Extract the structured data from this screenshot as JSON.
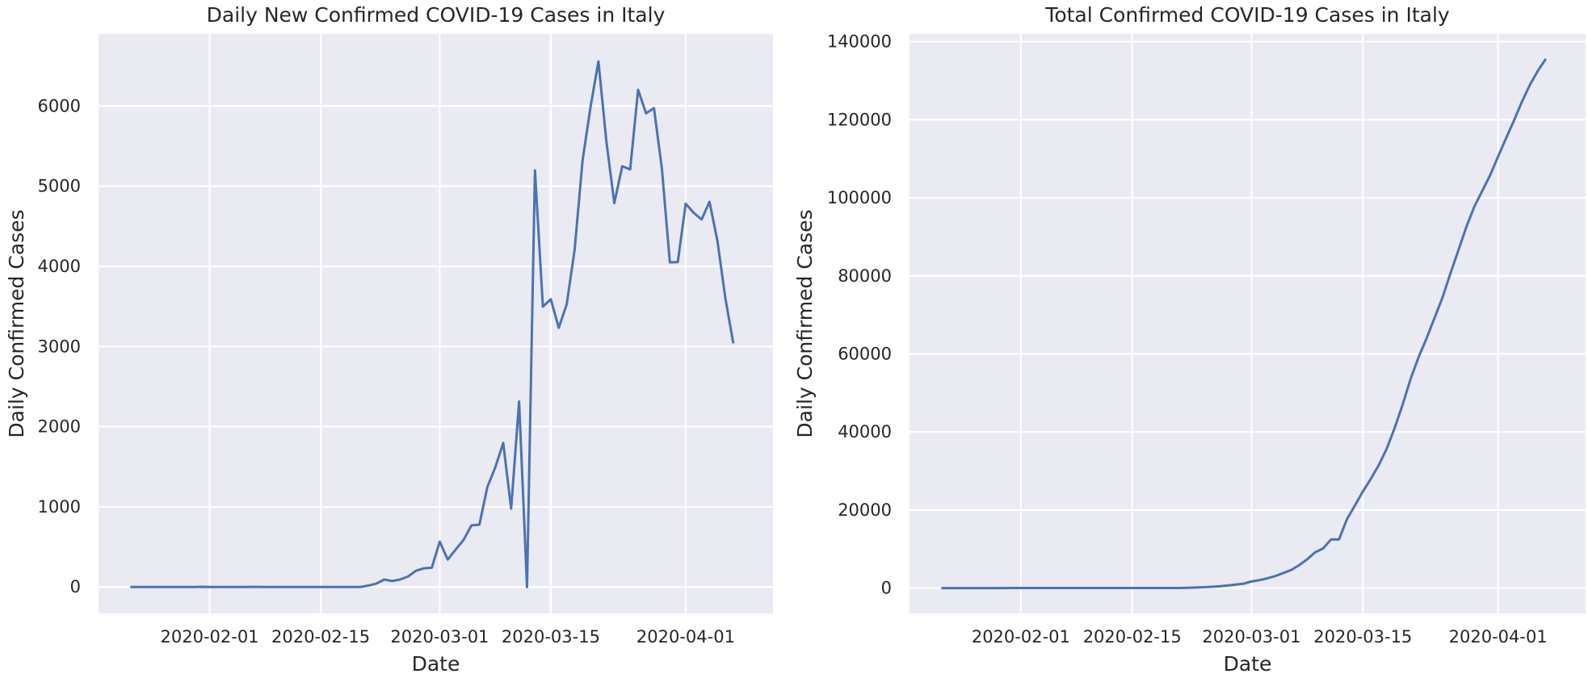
{
  "chart_data": [
    {
      "type": "line",
      "title": "Daily New Confirmed COVID-19 Cases in Italy",
      "xlabel": "Date",
      "ylabel": "Daily Confirmed Cases",
      "grid": true,
      "x_ticks": [
        "2020-02-01",
        "2020-02-15",
        "2020-03-01",
        "2020-03-15",
        "2020-04-01"
      ],
      "y_ticks": [
        0,
        1000,
        2000,
        3000,
        4000,
        5000,
        6000
      ],
      "xlim": [
        "2020-01-18",
        "2020-04-12"
      ],
      "ylim": [
        -330,
        6900
      ],
      "series": [
        {
          "color": "#4c72b0",
          "x": [
            "2020-01-22",
            "2020-01-23",
            "2020-01-24",
            "2020-01-25",
            "2020-01-26",
            "2020-01-27",
            "2020-01-28",
            "2020-01-29",
            "2020-01-30",
            "2020-01-31",
            "2020-02-01",
            "2020-02-02",
            "2020-02-03",
            "2020-02-04",
            "2020-02-05",
            "2020-02-06",
            "2020-02-07",
            "2020-02-08",
            "2020-02-09",
            "2020-02-10",
            "2020-02-11",
            "2020-02-12",
            "2020-02-13",
            "2020-02-14",
            "2020-02-15",
            "2020-02-16",
            "2020-02-17",
            "2020-02-18",
            "2020-02-19",
            "2020-02-20",
            "2020-02-21",
            "2020-02-22",
            "2020-02-23",
            "2020-02-24",
            "2020-02-25",
            "2020-02-26",
            "2020-02-27",
            "2020-02-28",
            "2020-02-29",
            "2020-03-01",
            "2020-03-02",
            "2020-03-03",
            "2020-03-04",
            "2020-03-05",
            "2020-03-06",
            "2020-03-07",
            "2020-03-08",
            "2020-03-09",
            "2020-03-10",
            "2020-03-11",
            "2020-03-12",
            "2020-03-13",
            "2020-03-14",
            "2020-03-15",
            "2020-03-16",
            "2020-03-17",
            "2020-03-18",
            "2020-03-19",
            "2020-03-20",
            "2020-03-21",
            "2020-03-22",
            "2020-03-23",
            "2020-03-24",
            "2020-03-25",
            "2020-03-26",
            "2020-03-27",
            "2020-03-28",
            "2020-03-29",
            "2020-03-30",
            "2020-03-31",
            "2020-04-01",
            "2020-04-02",
            "2020-04-03",
            "2020-04-04",
            "2020-04-05",
            "2020-04-06",
            "2020-04-07"
          ],
          "values": [
            0,
            0,
            0,
            0,
            0,
            0,
            0,
            0,
            0,
            2,
            0,
            0,
            0,
            0,
            0,
            1,
            1,
            0,
            0,
            0,
            0,
            0,
            0,
            0,
            0,
            0,
            0,
            0,
            0,
            0,
            17,
            42,
            93,
            74,
            93,
            131,
            202,
            233,
            240,
            566,
            342,
            466,
            587,
            769,
            778,
            1247,
            1492,
            1797,
            977,
            2313,
            0,
            5198,
            3497,
            3590,
            3233,
            3526,
            4207,
            5322,
            5986,
            6557,
            5560,
            4789,
            5249,
            5210,
            6203,
            5909,
            5974,
            5217,
            4050,
            4053,
            4782,
            4668,
            4585,
            4805,
            4316,
            3599,
            3039
          ]
        }
      ]
    },
    {
      "type": "line",
      "title": "Total Confirmed COVID-19 Cases in Italy",
      "xlabel": "Date",
      "ylabel": "Daily Confirmed Cases",
      "grid": true,
      "x_ticks": [
        "2020-02-01",
        "2020-02-15",
        "2020-03-01",
        "2020-03-15",
        "2020-04-01"
      ],
      "y_ticks": [
        0,
        20000,
        40000,
        60000,
        80000,
        100000,
        120000,
        140000
      ],
      "xlim": [
        "2020-01-18",
        "2020-04-12"
      ],
      "ylim": [
        -6500,
        142000
      ],
      "series": [
        {
          "color": "#4c72b0",
          "x": [
            "2020-01-22",
            "2020-01-23",
            "2020-01-24",
            "2020-01-25",
            "2020-01-26",
            "2020-01-27",
            "2020-01-28",
            "2020-01-29",
            "2020-01-30",
            "2020-01-31",
            "2020-02-01",
            "2020-02-02",
            "2020-02-03",
            "2020-02-04",
            "2020-02-05",
            "2020-02-06",
            "2020-02-07",
            "2020-02-08",
            "2020-02-09",
            "2020-02-10",
            "2020-02-11",
            "2020-02-12",
            "2020-02-13",
            "2020-02-14",
            "2020-02-15",
            "2020-02-16",
            "2020-02-17",
            "2020-02-18",
            "2020-02-19",
            "2020-02-20",
            "2020-02-21",
            "2020-02-22",
            "2020-02-23",
            "2020-02-24",
            "2020-02-25",
            "2020-02-26",
            "2020-02-27",
            "2020-02-28",
            "2020-02-29",
            "2020-03-01",
            "2020-03-02",
            "2020-03-03",
            "2020-03-04",
            "2020-03-05",
            "2020-03-06",
            "2020-03-07",
            "2020-03-08",
            "2020-03-09",
            "2020-03-10",
            "2020-03-11",
            "2020-03-12",
            "2020-03-13",
            "2020-03-14",
            "2020-03-15",
            "2020-03-16",
            "2020-03-17",
            "2020-03-18",
            "2020-03-19",
            "2020-03-20",
            "2020-03-21",
            "2020-03-22",
            "2020-03-23",
            "2020-03-24",
            "2020-03-25",
            "2020-03-26",
            "2020-03-27",
            "2020-03-28",
            "2020-03-29",
            "2020-03-30",
            "2020-03-31",
            "2020-04-01",
            "2020-04-02",
            "2020-04-03",
            "2020-04-04",
            "2020-04-05",
            "2020-04-06",
            "2020-04-07"
          ],
          "values": [
            0,
            0,
            0,
            0,
            0,
            0,
            0,
            0,
            0,
            2,
            2,
            2,
            2,
            2,
            2,
            3,
            3,
            3,
            3,
            3,
            3,
            3,
            3,
            3,
            3,
            3,
            3,
            3,
            3,
            3,
            20,
            62,
            155,
            229,
            322,
            453,
            655,
            888,
            1128,
            1694,
            2036,
            2502,
            3089,
            3858,
            4636,
            5883,
            7375,
            9172,
            10149,
            12462,
            12462,
            17660,
            21157,
            24747,
            27980,
            31506,
            35713,
            41035,
            47021,
            53578,
            59138,
            63927,
            69176,
            74386,
            80589,
            86498,
            92472,
            97689,
            101739,
            105792,
            110574,
            115242,
            119827,
            124632,
            128948,
            132547,
            135586
          ]
        }
      ]
    }
  ]
}
